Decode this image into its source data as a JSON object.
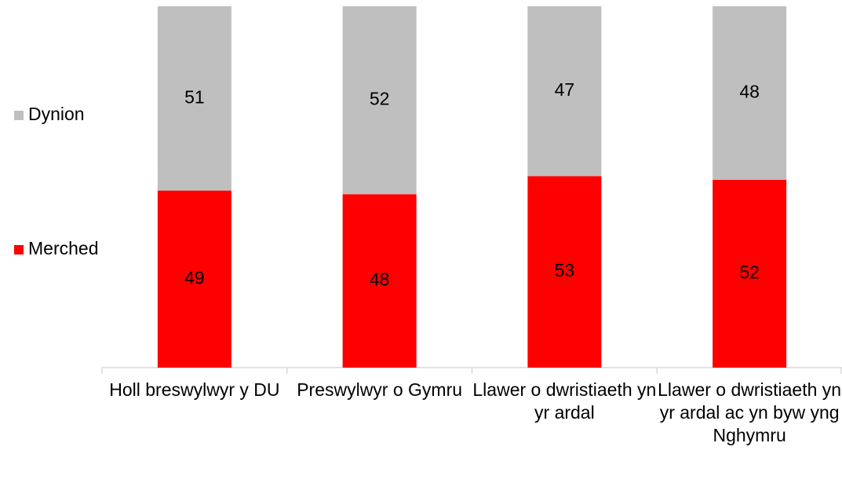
{
  "chart_data": {
    "type": "stacked_bar",
    "categories": [
      "Holl breswylwyr y DU",
      "Preswylwyr o Gymru",
      "Llawer o dwristiaeth yn yr ardal",
      "Llawer o dwristiaeth yn yr ardal ac yn byw yng Nghymru"
    ],
    "series": [
      {
        "name": "Merched",
        "color": "#ff0000",
        "values": [
          49,
          48,
          53,
          52
        ]
      },
      {
        "name": "Dynion",
        "color": "#bfbfbf",
        "values": [
          51,
          52,
          47,
          48
        ]
      }
    ],
    "ylim": [
      0,
      100
    ]
  }
}
